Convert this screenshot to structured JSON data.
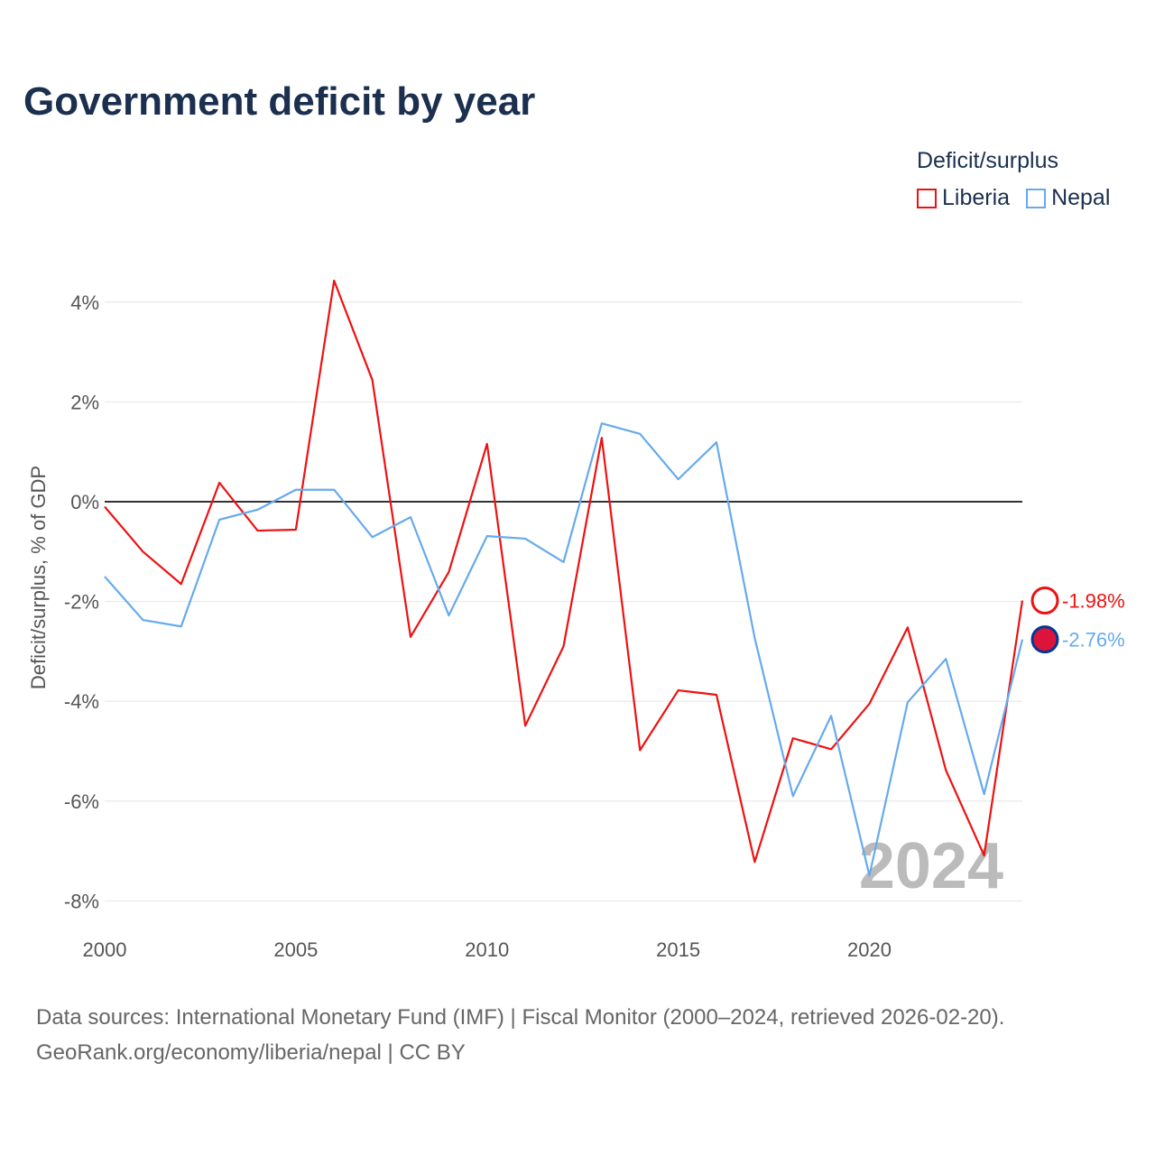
{
  "title": "Government deficit by year",
  "legend": {
    "title": "Deficit/surplus",
    "items": [
      {
        "name": "Liberia",
        "color": "#ee1111"
      },
      {
        "name": "Nepal",
        "color": "#66aaee"
      }
    ]
  },
  "source": {
    "line1": "Data sources: International Monetary Fund (IMF) | Fiscal Monitor (2000–2024, retrieved 2026-02-20).",
    "line2": "GeoRank.org/economy/liberia/nepal | CC BY"
  },
  "chart_data": {
    "type": "line",
    "title": "Government deficit by year",
    "xlabel": "",
    "ylabel": "Deficit/surplus, % of GDP",
    "x": [
      2000,
      2001,
      2002,
      2003,
      2004,
      2005,
      2006,
      2007,
      2008,
      2009,
      2010,
      2011,
      2012,
      2013,
      2014,
      2015,
      2016,
      2017,
      2018,
      2019,
      2020,
      2021,
      2022,
      2023,
      2024
    ],
    "xticks": [
      2000,
      2005,
      2010,
      2015,
      2020
    ],
    "yticks": [
      4,
      2,
      0,
      -2,
      -4,
      -6,
      -8
    ],
    "ytick_labels": [
      "4%",
      "2%",
      "0%",
      "-2%",
      "-4%",
      "-6%",
      "-8%"
    ],
    "xlim": [
      2000,
      2024
    ],
    "ylim": [
      -8.2,
      4.8
    ],
    "watermark": "2024",
    "series": [
      {
        "name": "Liberia",
        "color": "#ee1111",
        "end_label": "-1.98%",
        "values": [
          -0.1,
          -1.0,
          -1.65,
          0.38,
          -0.58,
          -0.56,
          4.43,
          2.44,
          -2.71,
          -1.41,
          1.16,
          -4.49,
          -2.9,
          1.28,
          -4.98,
          -3.78,
          -3.87,
          -7.22,
          -4.74,
          -4.96,
          -4.05,
          -2.52,
          -5.38,
          -7.09,
          -1.98
        ]
      },
      {
        "name": "Nepal",
        "color": "#66aaee",
        "end_label": "-2.76%",
        "values": [
          -1.5,
          -2.37,
          -2.5,
          -0.36,
          -0.16,
          0.24,
          0.24,
          -0.71,
          -0.31,
          -2.28,
          -0.69,
          -0.74,
          -1.21,
          1.57,
          1.36,
          0.45,
          1.19,
          -2.73,
          -5.9,
          -4.29,
          -7.49,
          -4.02,
          -3.15,
          -5.86,
          -2.76
        ]
      }
    ]
  }
}
